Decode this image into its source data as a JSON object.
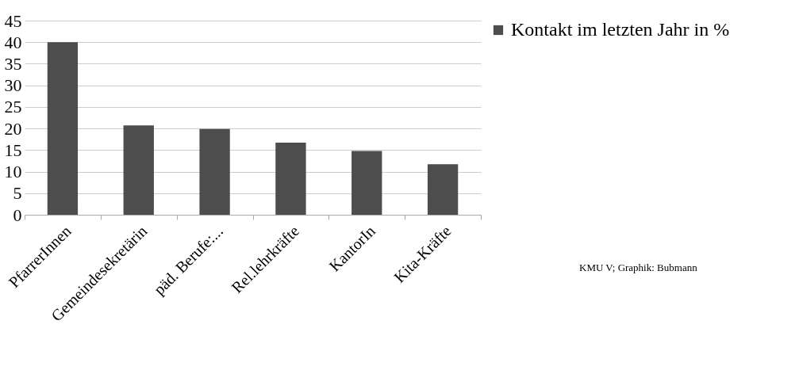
{
  "chart_data": {
    "type": "bar",
    "categories": [
      "PfarrerInnen",
      "Gemeindesekretärin",
      "päd. Berufe:...",
      "Rel.lehrkräfte",
      "KantorIn",
      "Kita-Kräfte"
    ],
    "series": [
      {
        "name": "Kontakt im letzten Jahr in %",
        "color": "#4d4d4d",
        "values": [
          40,
          20.7,
          19.9,
          16.7,
          14.8,
          11.7
        ]
      }
    ],
    "ylim": [
      0,
      45
    ],
    "yticks": [
      0,
      5,
      10,
      15,
      20,
      25,
      30,
      35,
      40,
      45
    ],
    "grid": "y",
    "legend": "right",
    "annotations": [
      "KMU V; Graphik: Bubmann"
    ]
  }
}
